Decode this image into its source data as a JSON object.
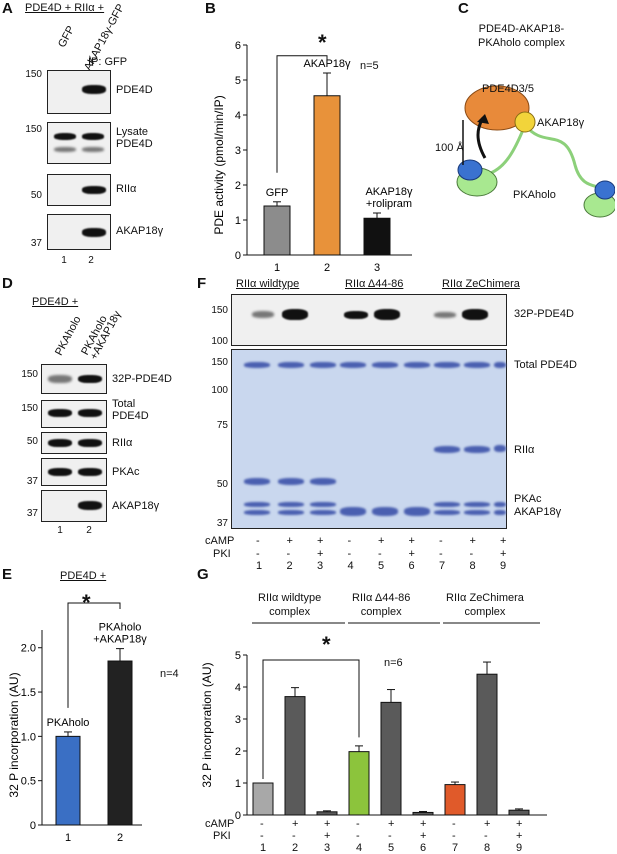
{
  "panelA": {
    "letter": "A",
    "header": "PDE4D + RIIα +",
    "cols": [
      "GFP",
      "AKAP18γ-GFP"
    ],
    "ip": "IP: GFP",
    "blots": [
      {
        "label": "PDE4D",
        "mw": [
          "150"
        ]
      },
      {
        "label": "Lysate\nPDE4D",
        "mw": [
          "150"
        ]
      },
      {
        "label": "RIIα",
        "mw": [
          "50"
        ]
      },
      {
        "label": "AKAP18γ",
        "mw": [
          "37"
        ]
      }
    ],
    "lanes": [
      "1",
      "2"
    ]
  },
  "panelB": {
    "letter": "B",
    "n": "n=5",
    "star": "*",
    "chart_data": {
      "type": "bar",
      "categories": [
        "1",
        "2",
        "3"
      ],
      "values": [
        1.4,
        4.55,
        1.05
      ],
      "errors": [
        0.12,
        0.65,
        0.15
      ],
      "bar_labels": [
        "GFP",
        "AKAP18γ",
        "AKAP18γ\n+rolipram"
      ],
      "colors": [
        "#8c8c8c",
        "#e8923a",
        "#111111"
      ],
      "ylabel": "PDE activity (pmol/min/IP)",
      "yticks": [
        "0",
        "1",
        "2",
        "3",
        "4",
        "5",
        "6"
      ],
      "ylim": [
        0,
        6
      ]
    }
  },
  "panelC": {
    "letter": "C",
    "title": "PDE4D-AKAP18-\nPKAholo complex",
    "pde": "PDE4D3/5",
    "akap": "AKAP18γ",
    "pka": "PKAholo",
    "dist": "100 Å"
  },
  "panelD": {
    "letter": "D",
    "header": "PDE4D +",
    "cols": [
      "PKAholo",
      "PKAholo\n+AKAP18γ"
    ],
    "blots": [
      {
        "label": "32P-PDE4D",
        "mw": "150"
      },
      {
        "label": "Total\nPDE4D",
        "mw": "150"
      },
      {
        "label": "RIIα",
        "mw": "50"
      },
      {
        "label": "PKAc",
        "mw": "37"
      },
      {
        "label": "AKAP18γ",
        "mw": "37"
      }
    ],
    "lanes": [
      "1",
      "2"
    ]
  },
  "panelE": {
    "letter": "E",
    "header": "PDE4D +",
    "star": "*",
    "n": "n=4",
    "chart_data": {
      "type": "bar",
      "categories": [
        "1",
        "2"
      ],
      "values": [
        1.0,
        1.85
      ],
      "errors": [
        0.05,
        0.14
      ],
      "bar_labels": [
        "PKAholo",
        "PKAholo\n+AKAP18γ"
      ],
      "colors": [
        "#3a6fc4",
        "#222222"
      ],
      "ylabel": "32 P incorporation (AU)",
      "yticks": [
        "0",
        "0.5",
        "1.0",
        "1.5",
        "2.0"
      ],
      "ylim": [
        0,
        2.2
      ]
    }
  },
  "panelF": {
    "letter": "F",
    "groups": [
      "RIIα wildtype",
      "RIIα Δ44-86",
      "RIIα ZeChimera"
    ],
    "labels": {
      "p32": "32P-PDE4D",
      "total": "Total PDE4D",
      "rii": "RIIα",
      "pkac": "PKAc",
      "akap": "AKAP18γ"
    },
    "mw_top": [
      "150",
      "100"
    ],
    "mw_gel": [
      "150",
      "100",
      "75",
      "50",
      "37"
    ],
    "row_camp": {
      "label": "cAMP",
      "vals": [
        "-",
        "+",
        "+",
        "-",
        "+",
        "+",
        "-",
        "+",
        "+"
      ]
    },
    "row_pki": {
      "label": "PKI",
      "vals": [
        "-",
        "-",
        "+",
        "-",
        "-",
        "+",
        "-",
        "-",
        "+"
      ]
    },
    "lanes": [
      "1",
      "2",
      "3",
      "4",
      "5",
      "6",
      "7",
      "8",
      "9"
    ]
  },
  "panelG": {
    "letter": "G",
    "groups": [
      "RIIα wildtype\ncomplex",
      "RIIα Δ44-86\ncomplex",
      "RIIα ZeChimera\ncomplex"
    ],
    "star": "*",
    "n": "n=6",
    "chart_data": {
      "type": "bar",
      "categories": [
        "1",
        "2",
        "3",
        "4",
        "5",
        "6",
        "7",
        "8",
        "9"
      ],
      "values": [
        1.0,
        3.7,
        0.1,
        1.98,
        3.52,
        0.08,
        0.95,
        4.4,
        0.15
      ],
      "errors": [
        0.0,
        0.28,
        0.03,
        0.18,
        0.4,
        0.03,
        0.08,
        0.38,
        0.04
      ],
      "colors": [
        "#a8a8a8",
        "#5a5a5a",
        "#5a5a5a",
        "#8cc43c",
        "#5a5a5a",
        "#5a5a5a",
        "#e05a2a",
        "#5a5a5a",
        "#5a5a5a"
      ],
      "ylabel": "32 P incorporation (AU)",
      "yticks": [
        "0",
        "1",
        "2",
        "3",
        "4",
        "5"
      ],
      "ylim": [
        0,
        5
      ]
    },
    "row_camp": {
      "label": "cAMP",
      "vals": [
        "-",
        "+",
        "+",
        "-",
        "+",
        "+",
        "-",
        "+",
        "+"
      ]
    },
    "row_pki": {
      "label": "PKI",
      "vals": [
        "-",
        "-",
        "+",
        "-",
        "-",
        "+",
        "-",
        "-",
        "+"
      ]
    }
  }
}
